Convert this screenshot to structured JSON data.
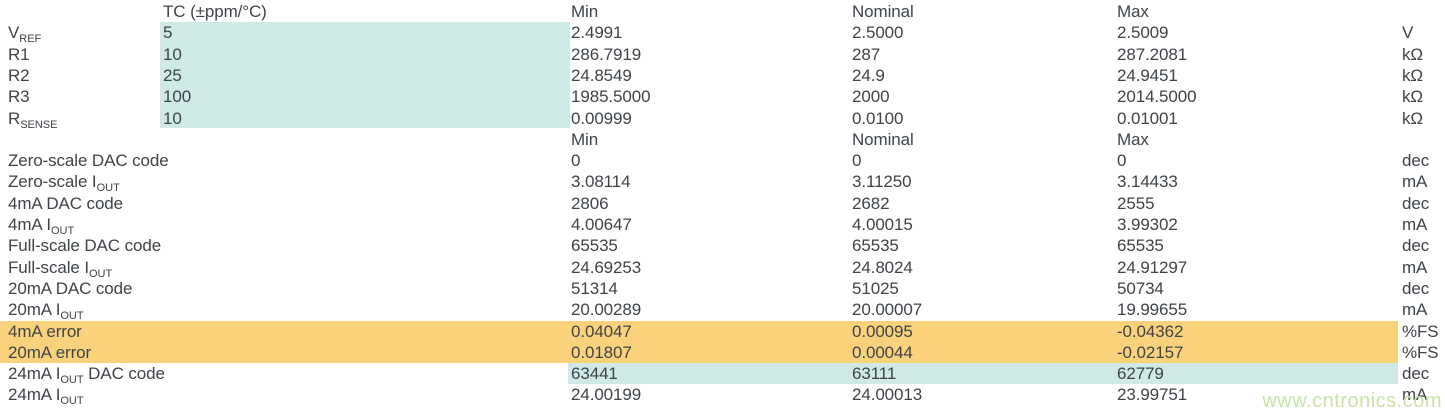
{
  "table": {
    "colors": {
      "text": "#3f4449",
      "highlight_blue": "#cfe9e7",
      "highlight_orange": "#fbd27c"
    },
    "columns": {
      "tc": "TC (±ppm/°C)",
      "min": "Min",
      "nominal": "Nominal",
      "max": "Max"
    },
    "rows": [
      {
        "type": "header",
        "tc": "TC (±ppm/°C)",
        "min": "Min",
        "nominal": "Nominal",
        "max": "Max"
      },
      {
        "label_pre": "V",
        "label_sub": "REF",
        "tc": "5",
        "min": "2.4991",
        "nominal": "2.5000",
        "max": "2.5009",
        "unit": "V"
      },
      {
        "label_pre": "R1",
        "tc": "10",
        "min": "286.7919",
        "nominal": "287",
        "max": "287.2081",
        "unit": "kΩ"
      },
      {
        "label_pre": "R2",
        "tc": "25",
        "min": "24.8549",
        "nominal": "24.9",
        "max": "24.9451",
        "unit": "kΩ"
      },
      {
        "label_pre": "R3",
        "tc": "100",
        "min": "1985.5000",
        "nominal": "2000",
        "max": "2014.5000",
        "unit": "kΩ"
      },
      {
        "label_pre": "R",
        "label_sub": "SENSE",
        "tc": "10",
        "min": "0.00999",
        "nominal": "0.0100",
        "max": "0.01001",
        "unit": "kΩ"
      },
      {
        "type": "header",
        "min": "Min",
        "nominal": "Nominal",
        "max": "Max"
      },
      {
        "label_pre": "Zero-scale DAC code",
        "min": "0",
        "nominal": "0",
        "max": "0",
        "unit": "dec"
      },
      {
        "label_pre": "Zero-scale I",
        "label_sub": "OUT",
        "min": "3.08114",
        "nominal": "3.11250",
        "max": "3.14433",
        "unit": "mA"
      },
      {
        "label_pre": "4mA DAC code",
        "min": "2806",
        "nominal": "2682",
        "max": "2555",
        "unit": "dec"
      },
      {
        "label_pre": "4mA I",
        "label_sub": "OUT",
        "min": "4.00647",
        "nominal": "4.00015",
        "max": "3.99302",
        "unit": "mA"
      },
      {
        "label_pre": "Full-scale DAC code",
        "min": "65535",
        "nominal": "65535",
        "max": "65535",
        "unit": "dec"
      },
      {
        "label_pre": "Full-scale I",
        "label_sub": "OUT",
        "min": "24.69253",
        "nominal": "24.8024",
        "max": "24.91297",
        "unit": "mA"
      },
      {
        "label_pre": "20mA DAC code",
        "min": "51314",
        "nominal": "51025",
        "max": "50734",
        "unit": "dec"
      },
      {
        "label_pre": "20mA I",
        "label_sub": "OUT",
        "min": "20.00289",
        "nominal": "20.00007",
        "max": "19.99655",
        "unit": "mA"
      },
      {
        "label_pre": "4mA error",
        "min": "0.04047",
        "nominal": "0.00095",
        "max": "-0.04362",
        "unit": "%FS",
        "highlight": "orange"
      },
      {
        "label_pre": "20mA error",
        "min": "0.01807",
        "nominal": "0.00044",
        "max": "-0.02157",
        "unit": "%FS",
        "highlight": "orange"
      },
      {
        "label_pre": "24mA I",
        "label_sub": "OUT",
        "label_post": " DAC code",
        "min": "63441",
        "nominal": "63111",
        "max": "62779",
        "unit": "dec",
        "highlight": "blue"
      },
      {
        "label_pre": "24mA I",
        "label_sub": "OUT",
        "min": "24.00199",
        "nominal": "24.00013",
        "max": "23.99751",
        "unit": "mA"
      }
    ]
  },
  "watermark": {
    "text": "www.cntronics.com",
    "color": "#c7e4ab"
  }
}
